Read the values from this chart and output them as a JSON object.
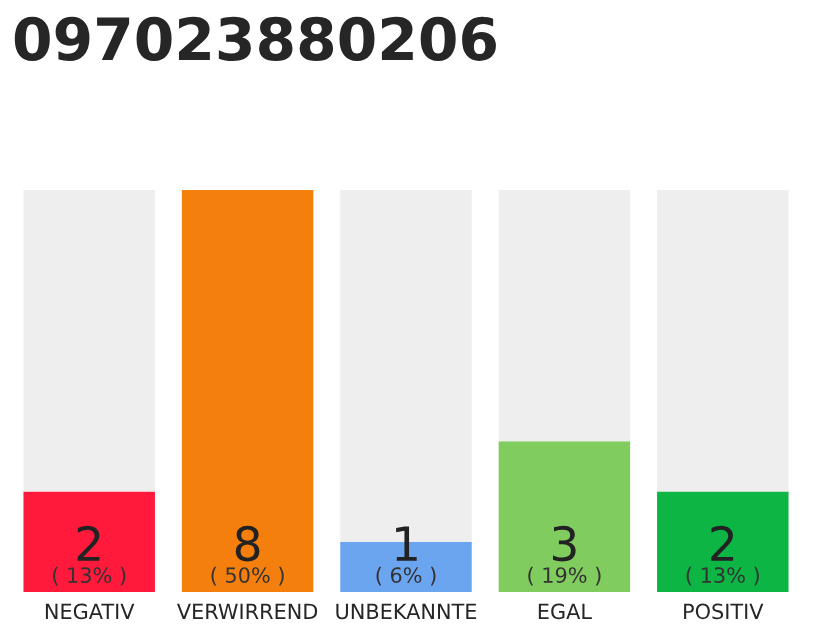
{
  "chart_data": {
    "type": "bar",
    "title": "097023880206",
    "categories": [
      "NEGATIV",
      "VERWIRREND",
      "UNBEKANNTE",
      "EGAL",
      "POSITIV"
    ],
    "stacked": true,
    "ylim": [
      0,
      8
    ],
    "series": [
      {
        "colors": [
          "#ff1a3c",
          "#f57f0c",
          "#6ba4ef",
          "#80cc5f",
          "#0db544"
        ],
        "values": [
          2,
          8,
          1,
          3,
          2
        ],
        "value_labels": [
          "2",
          "8",
          "1",
          "3",
          "2"
        ]
      },
      {
        "color": "#eeeeee",
        "values": [
          6,
          0,
          7,
          5,
          6
        ]
      }
    ],
    "annotations": [
      "( 13% )",
      "( 50% )",
      "( 6% )",
      "( 19% )",
      "( 13% )"
    ]
  }
}
